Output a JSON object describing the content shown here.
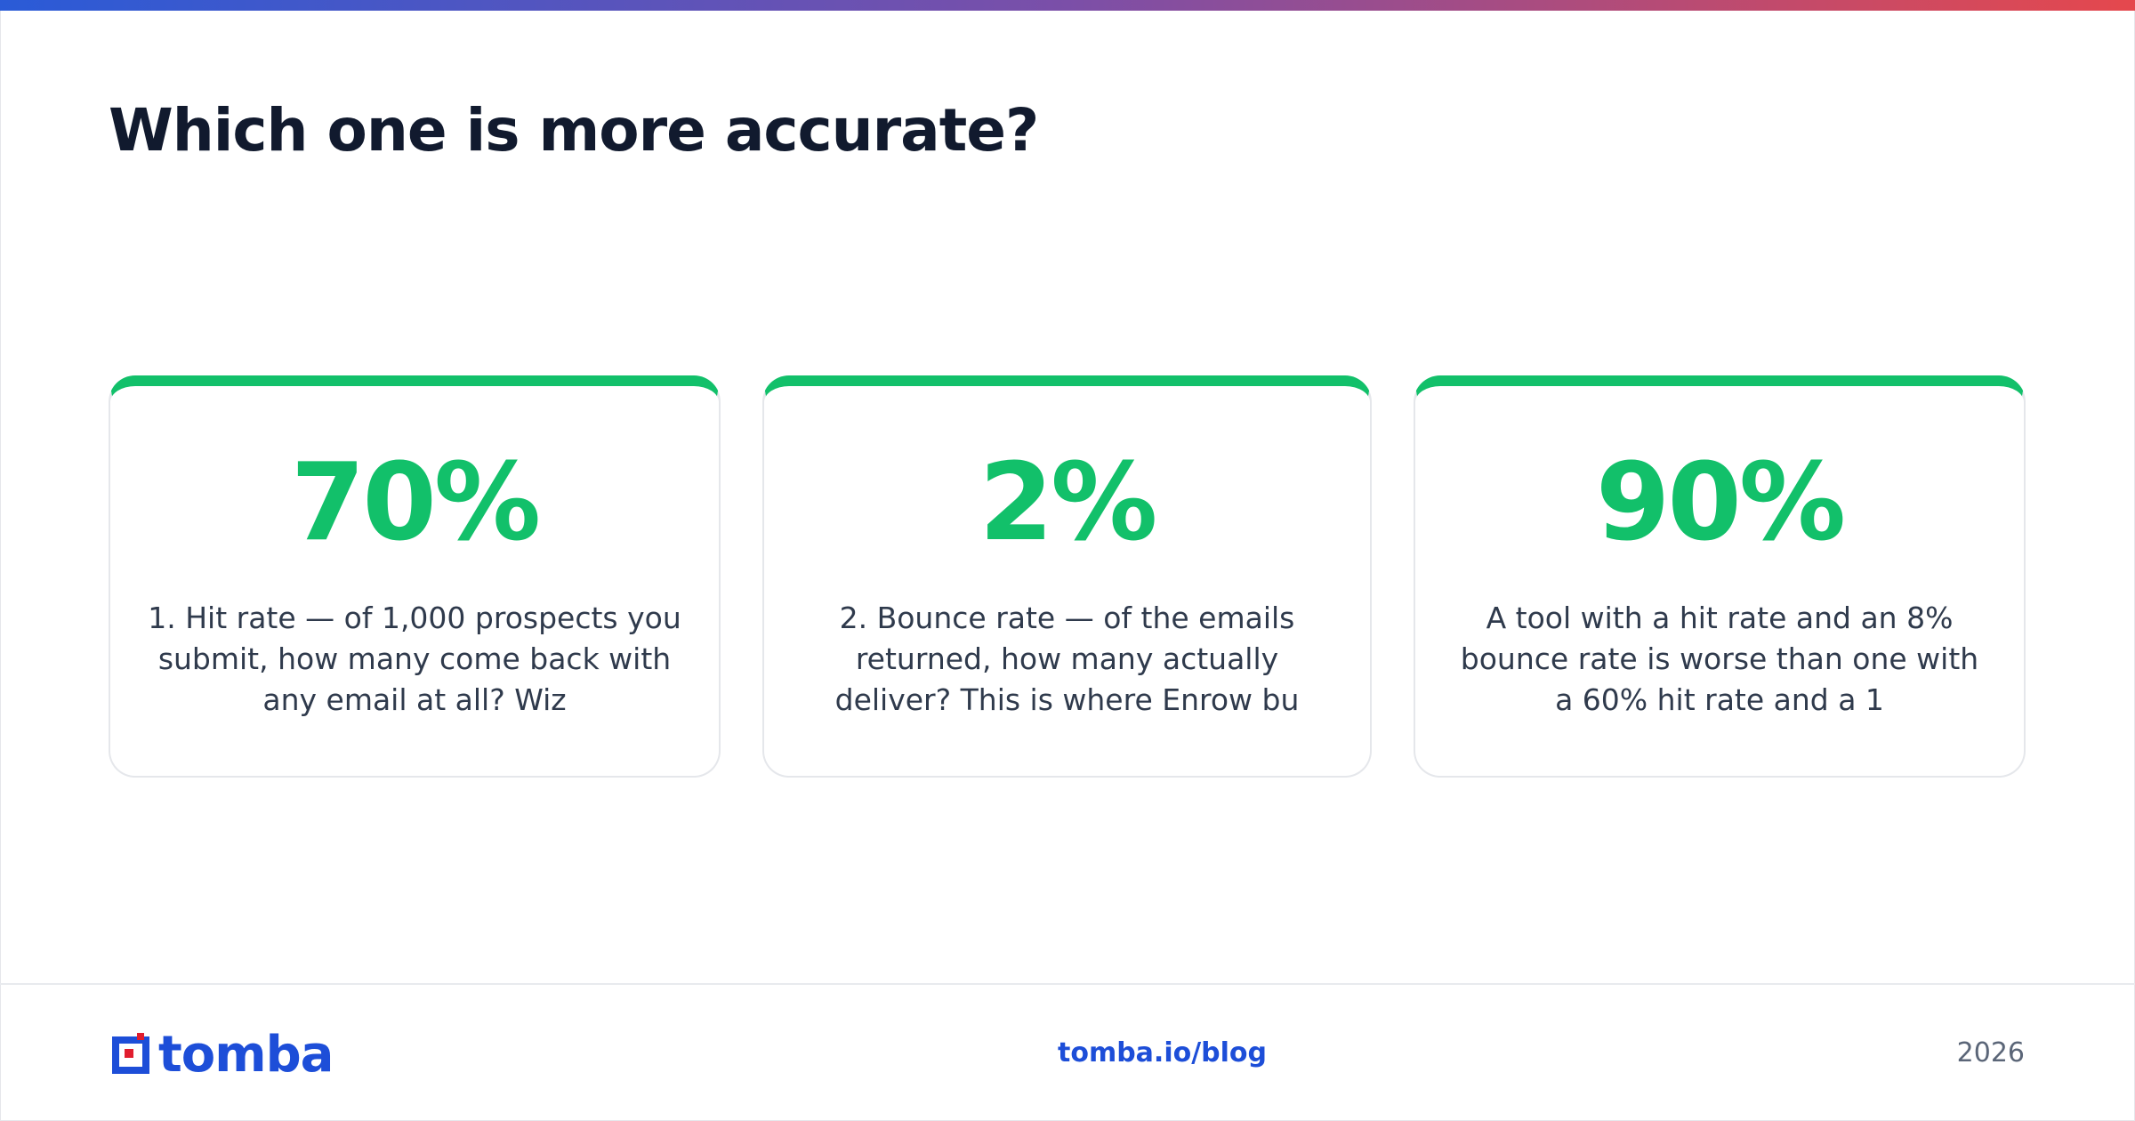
{
  "header": {
    "title": "Which one is more accurate?"
  },
  "cards": [
    {
      "stat": "70%",
      "text": "1. Hit rate — of 1,000 prospects you submit, how many come back with any email at all? Wiz"
    },
    {
      "stat": "2%",
      "text": "2. Bounce rate — of the emails returned, how many actually deliver? This is where Enrow bu"
    },
    {
      "stat": "90%",
      "text": "A tool with a hit rate and an 8% bounce rate is worse than one with a 60% hit rate and a 1"
    }
  ],
  "footer": {
    "logo": "tomba",
    "url": "tomba.io/blog",
    "year": "2026"
  }
}
